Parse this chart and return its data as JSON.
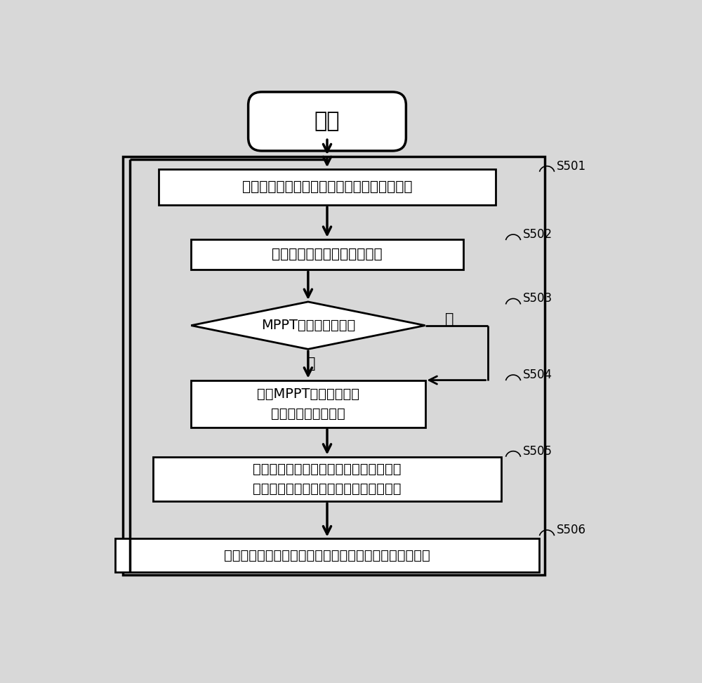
{
  "bg_color": "#d8d8d8",
  "box_color": "#ffffff",
  "line_color": "#000000",
  "font_color": "#000000",
  "start_text": "开始",
  "s501_text": "读取光伏组件电压、电网瞬时电压和原边电流",
  "s502_text": "单相锁相环计算当前电网相位",
  "s503_text": "MPPT跟踪周期超时？",
  "s504_text": "执行MPPT，计算副边整\n流正弦电流峰值参考",
  "s505_text": "重构器根据副边电流参考值和光伏组件电\n压以及电网瞬时电压计算原边电流参考值",
  "s506_text": "根据重构出的原边电流参考值，对原边电流进行闭环控制",
  "yes_text": "是",
  "no_text": "否",
  "label_s501": "S501",
  "label_s502": "S502",
  "label_s503": "S503",
  "label_s504": "S504",
  "label_s505": "S505",
  "label_s506": "S506"
}
